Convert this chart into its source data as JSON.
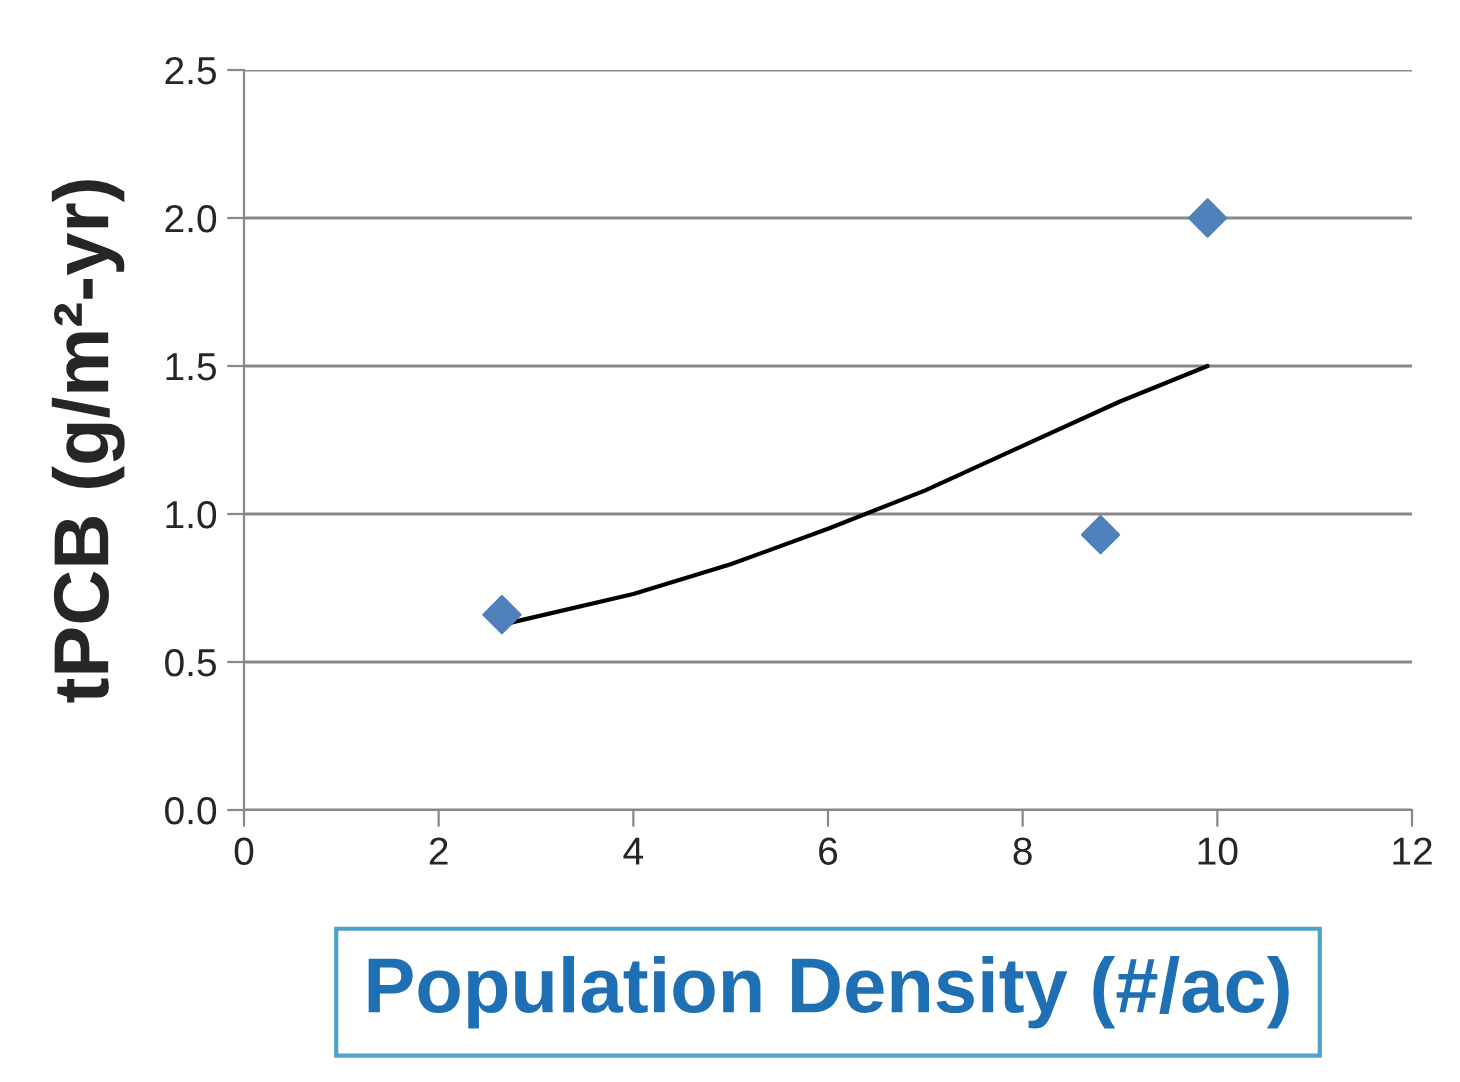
{
  "chart_data": {
    "type": "scatter",
    "xlabel": "Population Density (#/ac)",
    "ylabel": "tPCB (g/m²-yr)",
    "series": [
      {
        "color": "#4f81bd",
        "marker": "diamond",
        "x": [
          2.65,
          8.8,
          9.9
        ],
        "values": [
          0.66,
          0.93,
          2.0
        ]
      },
      {
        "type": "line",
        "color": "#000000",
        "marker": "none",
        "x": [
          2.7,
          4,
          5,
          6,
          7,
          8,
          9,
          9.9
        ],
        "values": [
          0.63,
          0.73,
          0.83,
          0.95,
          1.08,
          1.23,
          1.38,
          1.5
        ]
      }
    ],
    "xlim": [
      0,
      12
    ],
    "xticks": [
      0,
      2,
      4,
      6,
      8,
      10,
      12
    ],
    "ylim": [
      0,
      2.5
    ],
    "yticks": [
      {
        "value": 0,
        "label": "0.0"
      },
      {
        "value": 0.5,
        "label": "0.5"
      },
      {
        "value": 1,
        "label": "1.0"
      },
      {
        "value": 1.5,
        "label": "1.5"
      },
      {
        "value": 2,
        "label": "2.0"
      },
      {
        "value": 2.5,
        "label": "2.5"
      }
    ],
    "grid": "y"
  }
}
